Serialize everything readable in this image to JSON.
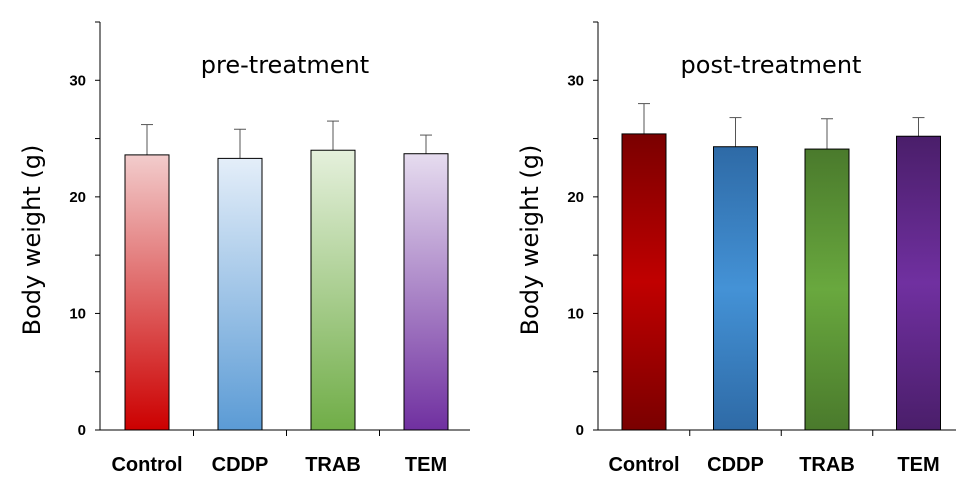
{
  "chart_data": [
    {
      "type": "bar",
      "title": "pre-treatment",
      "ylabel": "Body weight (g)",
      "xlabel": "",
      "ylim": [
        0,
        35
      ],
      "yticks": [
        0,
        10,
        20,
        30
      ],
      "categories": [
        "Control",
        "CDDP",
        "TRAB",
        "TEM"
      ],
      "values": [
        23.6,
        23.3,
        24.0,
        23.7
      ],
      "errors": [
        2.6,
        2.5,
        2.5,
        1.6
      ],
      "colors": [
        {
          "top": "#f2cccc",
          "bottom": "#cc0000"
        },
        {
          "top": "#e4eef9",
          "bottom": "#5b9bd5"
        },
        {
          "top": "#e5f0dc",
          "bottom": "#70ad47"
        },
        {
          "top": "#e6dcef",
          "bottom": "#7030a0"
        }
      ]
    },
    {
      "type": "bar",
      "title": "post-treatment",
      "ylabel": "Body weight (g)",
      "xlabel": "",
      "ylim": [
        0,
        35
      ],
      "yticks": [
        0,
        10,
        20,
        30
      ],
      "categories": [
        "Control",
        "CDDP",
        "TRAB",
        "TEM"
      ],
      "values": [
        25.4,
        24.3,
        24.1,
        25.2
      ],
      "errors": [
        2.6,
        2.5,
        2.6,
        1.6
      ],
      "colors": [
        {
          "edge": "#7a0000",
          "mid": "#c00000"
        },
        {
          "edge": "#2e6aa6",
          "mid": "#4492d6"
        },
        {
          "edge": "#4a7a2c",
          "mid": "#69a83e"
        },
        {
          "edge": "#4a1e6a",
          "mid": "#7030a0"
        }
      ]
    }
  ]
}
